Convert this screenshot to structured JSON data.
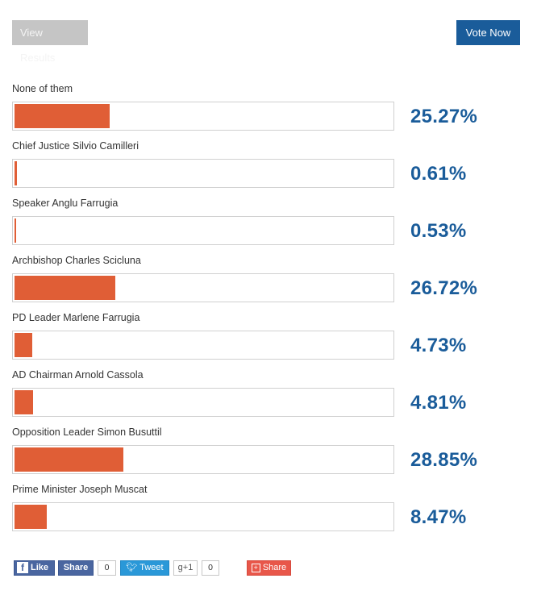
{
  "buttons": {
    "view_results": "View Results",
    "vote_now": "Vote Now"
  },
  "poll": {
    "options": [
      {
        "label": "None of them",
        "percent_text": "25.27%",
        "value": 25.27
      },
      {
        "label": "Chief Justice Silvio Camilleri",
        "percent_text": "0.61%",
        "value": 0.61
      },
      {
        "label": "Speaker Anglu Farrugia",
        "percent_text": "0.53%",
        "value": 0.53
      },
      {
        "label": "Archbishop Charles Scicluna",
        "percent_text": "26.72%",
        "value": 26.72
      },
      {
        "label": "PD Leader Marlene Farrugia",
        "percent_text": "4.73%",
        "value": 4.73
      },
      {
        "label": "AD Chairman Arnold Cassola",
        "percent_text": "4.81%",
        "value": 4.81
      },
      {
        "label": "Opposition Leader Simon Busuttil",
        "percent_text": "28.85%",
        "value": 28.85
      },
      {
        "label": "Prime Minister Joseph Muscat",
        "percent_text": "8.47%",
        "value": 8.47
      }
    ]
  },
  "social": {
    "fb_like": "Like",
    "fb_share": "Share",
    "fb_count": "0",
    "tweet": "Tweet",
    "gplus": "+1",
    "gplus_count": "0",
    "share": "Share"
  },
  "colors": {
    "bar_fill": "#e05e36",
    "accent_blue": "#1a5c9a"
  },
  "icons": {
    "facebook": "facebook-icon",
    "twitter": "twitter-icon",
    "google_plus": "google-plus-icon",
    "share": "share-plus-icon"
  }
}
